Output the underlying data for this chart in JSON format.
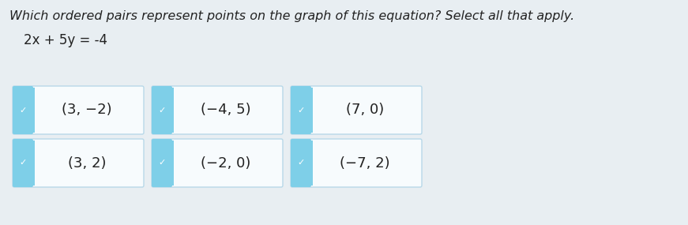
{
  "title": "Which ordered pairs represent points on the graph of this equation? Select all that apply.",
  "equation_display": "2x + 5y = -4",
  "background_color": "#e8eef2",
  "box_bg": "#f7fbfd",
  "box_border": "#b8d8e8",
  "tab_color": "#7ecfe8",
  "text_color": "#222222",
  "title_fontsize": 11.5,
  "eq_fontsize": 12,
  "label_fontsize": 13,
  "boxes": [
    {
      "label": "(3, −2)",
      "col": 0,
      "row": 0
    },
    {
      "label": "(−4, 5)",
      "col": 1,
      "row": 0
    },
    {
      "label": "(7, 0)",
      "col": 2,
      "row": 0
    },
    {
      "label": "(3, 2)",
      "col": 0,
      "row": 1
    },
    {
      "label": "(−2, 0)",
      "col": 1,
      "row": 1
    },
    {
      "label": "(−7, 2)",
      "col": 2,
      "row": 1
    }
  ]
}
